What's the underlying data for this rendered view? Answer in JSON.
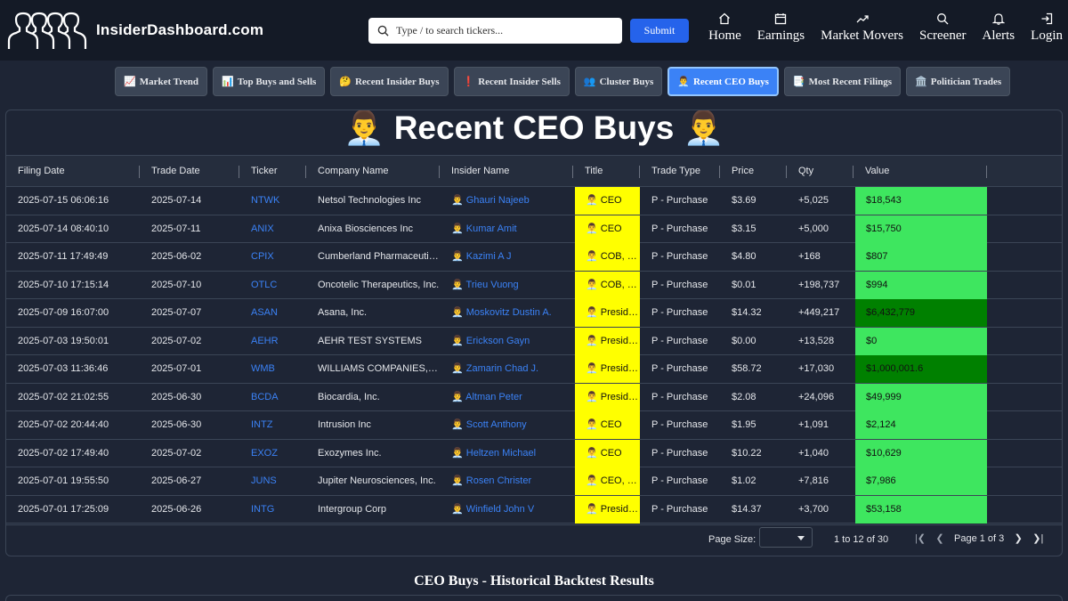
{
  "brand": {
    "name": "InsiderDashboard.com"
  },
  "search": {
    "placeholder": "Type / to search tickers...",
    "submit_label": "Submit"
  },
  "nav": [
    {
      "label": "Home",
      "icon": "home-icon"
    },
    {
      "label": "Earnings",
      "icon": "calendar-icon"
    },
    {
      "label": "Market Movers",
      "icon": "trend-up-icon"
    },
    {
      "label": "Screener",
      "icon": "search-icon"
    },
    {
      "label": "Alerts",
      "icon": "bell-icon"
    },
    {
      "label": "Login",
      "icon": "login-icon"
    }
  ],
  "subnav": [
    {
      "icon": "📈",
      "label": "Market Trend",
      "active": false
    },
    {
      "icon": "📊",
      "label": "Top Buys and Sells",
      "active": false
    },
    {
      "icon": "🤔",
      "label": "Recent Insider Buys",
      "active": false
    },
    {
      "icon": "❗",
      "label": "Recent Insider Sells",
      "active": false
    },
    {
      "icon": "👥",
      "label": "Cluster Buys",
      "active": false
    },
    {
      "icon": "👨‍💼",
      "label": "Recent CEO Buys",
      "active": true
    },
    {
      "icon": "📑",
      "label": "Most Recent Filings",
      "active": false
    },
    {
      "icon": "🏛️",
      "label": "Politician Trades",
      "active": false
    }
  ],
  "panel": {
    "title": "👨‍💼 Recent CEO Buys 👨‍💼"
  },
  "table": {
    "columns": [
      "Filing Date",
      "Trade Date",
      "Ticker",
      "Company Name",
      "Insider Name",
      "Title",
      "Trade Type",
      "Price",
      "Qty",
      "Value"
    ],
    "value_colors": {
      "normal": "#3ee65f",
      "large": "#008000"
    },
    "rows": [
      {
        "filing": "2025-07-15 06:06:16",
        "trade": "2025-07-14",
        "ticker": "NTWK",
        "company": "Netsol Technologies Inc",
        "insider": "👨‍💼 Ghauri Najeeb",
        "title": "👨‍💼 CEO",
        "type": "P - Purchase",
        "price": "$3.69",
        "qty": "+5,025",
        "value": "$18,543",
        "large": false
      },
      {
        "filing": "2025-07-14 08:40:10",
        "trade": "2025-07-11",
        "ticker": "ANIX",
        "company": "Anixa Biosciences Inc",
        "insider": "👨‍💼 Kumar Amit",
        "title": "👨‍💼 CEO",
        "type": "P - Purchase",
        "price": "$3.15",
        "qty": "+5,000",
        "value": "$15,750",
        "large": false
      },
      {
        "filing": "2025-07-11 17:49:49",
        "trade": "2025-06-02",
        "ticker": "CPIX",
        "company": "Cumberland Pharmaceuticals Inc",
        "insider": "👨‍💼 Kazimi A J",
        "title": "👨‍💼 COB, CEO",
        "type": "P - Purchase",
        "price": "$4.80",
        "qty": "+168",
        "value": "$807",
        "large": false
      },
      {
        "filing": "2025-07-10 17:15:14",
        "trade": "2025-07-10",
        "ticker": "OTLC",
        "company": "Oncotelic Therapeutics, Inc.",
        "insider": "👨‍💼 Trieu Vuong",
        "title": "👨‍💼 COB, CEO",
        "type": "P - Purchase",
        "price": "$0.01",
        "qty": "+198,737",
        "value": "$994",
        "large": false
      },
      {
        "filing": "2025-07-09 16:07:00",
        "trade": "2025-07-07",
        "ticker": "ASAN",
        "company": "Asana, Inc.",
        "insider": "👨‍💼 Moskovitz Dustin A.",
        "title": "👨‍💼 President, CEO",
        "type": "P - Purchase",
        "price": "$14.32",
        "qty": "+449,217",
        "value": "$6,432,779",
        "large": true
      },
      {
        "filing": "2025-07-03 19:50:01",
        "trade": "2025-07-02",
        "ticker": "AEHR",
        "company": "AEHR TEST SYSTEMS",
        "insider": "👨‍💼 Erickson Gayn",
        "title": "👨‍💼 President, CEO",
        "type": "P - Purchase",
        "price": "$0.00",
        "qty": "+13,528",
        "value": "$0",
        "large": false
      },
      {
        "filing": "2025-07-03 11:36:46",
        "trade": "2025-07-01",
        "ticker": "WMB",
        "company": "WILLIAMS COMPANIES, INC.",
        "insider": "👨‍💼 Zamarin Chad J.",
        "title": "👨‍💼 President, CEO",
        "type": "P - Purchase",
        "price": "$58.72",
        "qty": "+17,030",
        "value": "$1,000,001.6",
        "large": true
      },
      {
        "filing": "2025-07-02 21:02:55",
        "trade": "2025-06-30",
        "ticker": "BCDA",
        "company": "Biocardia, Inc.",
        "insider": "👨‍💼 Altman Peter",
        "title": "👨‍💼 President, CEO",
        "type": "P - Purchase",
        "price": "$2.08",
        "qty": "+24,096",
        "value": "$49,999",
        "large": false
      },
      {
        "filing": "2025-07-02 20:44:40",
        "trade": "2025-06-30",
        "ticker": "INTZ",
        "company": "Intrusion Inc",
        "insider": "👨‍💼 Scott Anthony",
        "title": "👨‍💼 CEO",
        "type": "P - Purchase",
        "price": "$1.95",
        "qty": "+1,091",
        "value": "$2,124",
        "large": false
      },
      {
        "filing": "2025-07-02 17:49:40",
        "trade": "2025-07-02",
        "ticker": "EXOZ",
        "company": "Exozymes Inc.",
        "insider": "👨‍💼 Heltzen Michael",
        "title": "👨‍💼 CEO",
        "type": "P - Purchase",
        "price": "$10.22",
        "qty": "+1,040",
        "value": "$10,629",
        "large": false
      },
      {
        "filing": "2025-07-01 19:55:50",
        "trade": "2025-06-27",
        "ticker": "JUNS",
        "company": "Jupiter Neurosciences, Inc.",
        "insider": "👨‍💼 Rosen Christer",
        "title": "👨‍💼 CEO, Director",
        "type": "P - Purchase",
        "price": "$1.02",
        "qty": "+7,816",
        "value": "$7,986",
        "large": false
      },
      {
        "filing": "2025-07-01 17:25:09",
        "trade": "2025-06-26",
        "ticker": "INTG",
        "company": "Intergroup Corp",
        "insider": "👨‍💼 Winfield John V",
        "title": "👨‍💼 President, CEO",
        "type": "P - Purchase",
        "price": "$14.37",
        "qty": "+3,700",
        "value": "$53,158",
        "large": false
      }
    ]
  },
  "pagination": {
    "page_size_label": "Page Size:",
    "range_text": "1 to 12 of 30",
    "page_text": "Page 1 of 3"
  },
  "backtest": {
    "title": "CEO Buys - Historical Backtest Results"
  }
}
